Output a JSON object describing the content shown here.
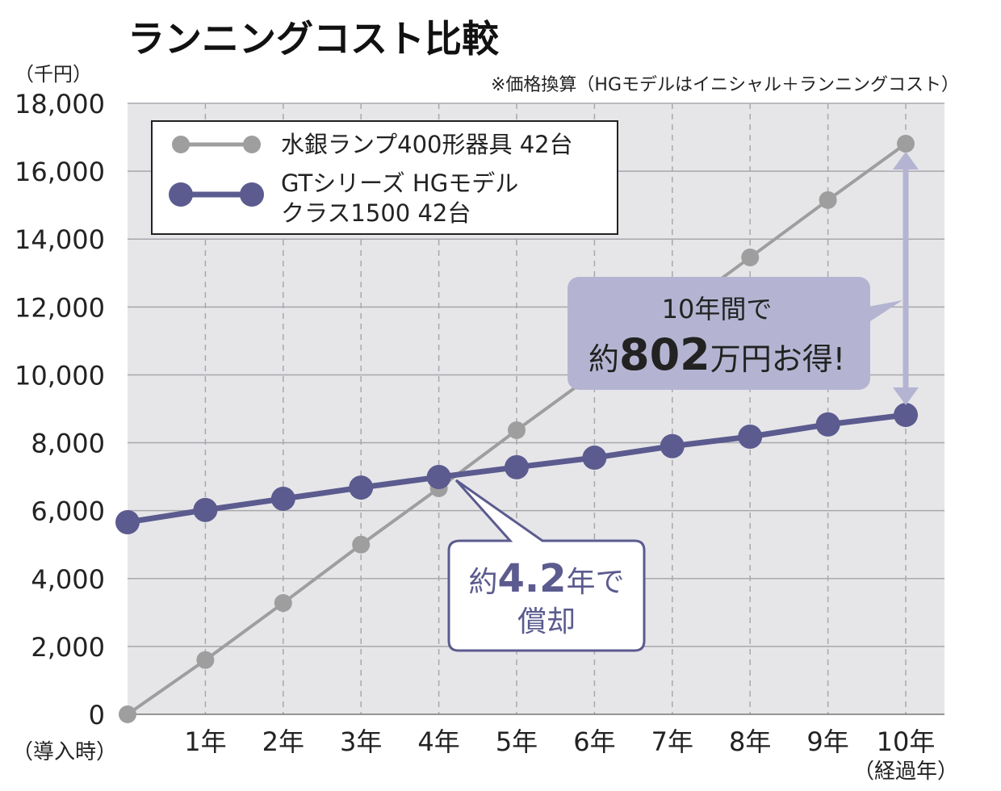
{
  "chart_data": {
    "type": "line",
    "title": "ランニングコスト比較",
    "subtitle": "※価格換算（HGモデルはイニシャル＋ランニングコスト）",
    "ylabel": "（千円）",
    "xlabel": "（経過年）",
    "x_first_label": "（導入時）",
    "categories": [
      "0",
      "1年",
      "2年",
      "3年",
      "4年",
      "5年",
      "6年",
      "7年",
      "8年",
      "9年",
      "10年"
    ],
    "yticks": [
      "0",
      "2,000",
      "4,000",
      "6,000",
      "8,000",
      "10,000",
      "12,000",
      "14,000",
      "16,000",
      "18,000"
    ],
    "ylim": [
      0,
      18000
    ],
    "grid": true,
    "legend_position": "top-left",
    "series": [
      {
        "name": "水銀ランプ400形器具 42台",
        "color": "#9e9e9e",
        "values": [
          0,
          1600,
          3280,
          5000,
          6660,
          8370,
          10040,
          11770,
          13460,
          15150,
          16810
        ]
      },
      {
        "name_line1": "GTシリーズ HGモデル",
        "name_line2": "クラス1500 42台",
        "color": "#5b5b8f",
        "values": [
          5660,
          6020,
          6350,
          6680,
          6990,
          7280,
          7560,
          7900,
          8180,
          8540,
          8820
        ]
      }
    ],
    "annotations": {
      "savings_line1": "10年間で",
      "savings_prefix": "約",
      "savings_value": "802",
      "savings_suffix": "万円お得!",
      "payback_prefix": "約",
      "payback_value": "4.2",
      "payback_suffix": "年で",
      "payback_line2": "償却"
    }
  }
}
